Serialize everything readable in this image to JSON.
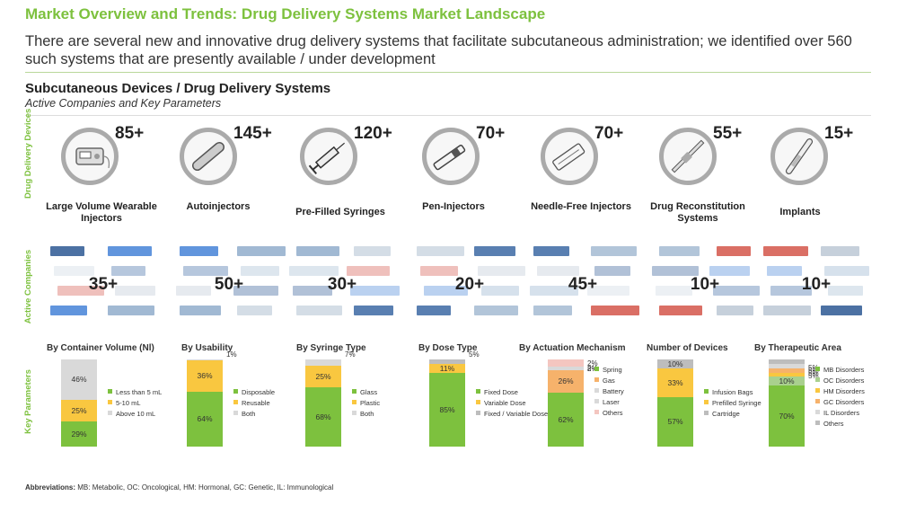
{
  "header": {
    "title": "Market Overview and Trends: Drug Delivery Systems Market Landscape",
    "subtitle": "There are several new and innovative drug delivery systems that facilitate subcutaneous administration; we identified over 560 such systems that are presently available / under development"
  },
  "section": {
    "title": "Subcutaneous Devices / Drug Delivery Systems",
    "subtitle": "Active Companies and Key Parameters"
  },
  "side_labels": {
    "devices": "Drug Delivery Devices",
    "companies": "Active Companies",
    "parameters": "Key Parameters"
  },
  "devices": [
    {
      "count": "85+",
      "label": "Large Volume Wearable Injectors",
      "icon": "wearable-injector-icon"
    },
    {
      "count": "145+",
      "label": "Autoinjectors",
      "icon": "autoinjector-icon"
    },
    {
      "count": "120+",
      "label": "Pre-Filled Syringes",
      "icon": "syringe-icon"
    },
    {
      "count": "70+",
      "label": "Pen-Injectors",
      "icon": "pen-injector-icon"
    },
    {
      "count": "70+",
      "label": "Needle-Free Injectors",
      "icon": "needle-free-injector-icon"
    },
    {
      "count": "55+",
      "label": "Drug Reconstitution Systems",
      "icon": "reconstitution-system-icon"
    },
    {
      "count": "15+",
      "label": "Implants",
      "icon": "implant-icon"
    }
  ],
  "companies": [
    "35+",
    "50+",
    "30+",
    "20+",
    "45+",
    "10+",
    "10+"
  ],
  "colors": {
    "green": "#7dc13e",
    "yellow": "#f9c740",
    "grey": "#bdbdbd",
    "lightgrey": "#d9d9d9",
    "pink": "#f4c6c0",
    "orange": "#f6b26b",
    "title_green": "#7dc13e"
  },
  "chart_data": [
    {
      "type": "bar",
      "stacked": true,
      "title": "By Container Volume (Nl)",
      "segments": [
        {
          "name": "Less than 5 mL",
          "value": 29,
          "label": "29%"
        },
        {
          "name": "5-10 mL",
          "value": 25,
          "label": "25%"
        },
        {
          "name": "Above 10 mL",
          "value": 46,
          "label": "46%"
        }
      ]
    },
    {
      "type": "bar",
      "stacked": true,
      "title": "By Usability",
      "segments": [
        {
          "name": "Disposable",
          "value": 64,
          "label": "64%"
        },
        {
          "name": "Reusable",
          "value": 36,
          "label": "36%"
        },
        {
          "name": "Both",
          "value": 1,
          "label": "1%"
        }
      ]
    },
    {
      "type": "bar",
      "stacked": true,
      "title": "By Syringe Type",
      "segments": [
        {
          "name": "Glass",
          "value": 68,
          "label": "68%"
        },
        {
          "name": "Plastic",
          "value": 25,
          "label": "25%"
        },
        {
          "name": "Both",
          "value": 7,
          "label": "7%"
        }
      ]
    },
    {
      "type": "bar",
      "stacked": true,
      "title": "By Dose Type",
      "segments": [
        {
          "name": "Fixed Dose",
          "value": 85,
          "label": "85%"
        },
        {
          "name": "Variable Dose",
          "value": 11,
          "label": "11%"
        },
        {
          "name": "Fixed / Variable Dose",
          "value": 5,
          "label": "5%"
        }
      ]
    },
    {
      "type": "bar",
      "stacked": true,
      "title": "By Actuation Mechanism",
      "segments": [
        {
          "name": "Spring",
          "value": 62,
          "label": "62%"
        },
        {
          "name": "Gas",
          "value": 26,
          "label": "26%"
        },
        {
          "name": "Battery",
          "value": 2,
          "label": "2%"
        },
        {
          "name": "Laser",
          "value": 2,
          "label": "2%"
        },
        {
          "name": "Others",
          "value": 8,
          "label": "8%"
        }
      ]
    },
    {
      "type": "bar",
      "stacked": true,
      "title": "Number of Devices",
      "segments": [
        {
          "name": "Infusion Bags",
          "value": 57,
          "label": "57%"
        },
        {
          "name": "Prefilled Syringe",
          "value": 33,
          "label": "33%"
        },
        {
          "name": "Cartridge",
          "value": 10,
          "label": "10%"
        }
      ]
    },
    {
      "type": "bar",
      "stacked": true,
      "title": "By Therapeutic Area",
      "segments": [
        {
          "name": "MB Disorders",
          "value": 70,
          "label": "70%"
        },
        {
          "name": "OC Disorders",
          "value": 10,
          "label": "10%"
        },
        {
          "name": "HM Disorders",
          "value": 5,
          "label": "5%"
        },
        {
          "name": "GC Disorders",
          "value": 5,
          "label": "5%"
        },
        {
          "name": "IL Disorders",
          "value": 5,
          "label": "5%"
        },
        {
          "name": "Others",
          "value": 5,
          "label": "5%"
        }
      ]
    }
  ],
  "abbreviations": {
    "label": "Abbreviations:",
    "text": "MB: Metabolic, OC: Oncological, HM: Hormonal, GC: Genetic, IL: Immunological"
  }
}
